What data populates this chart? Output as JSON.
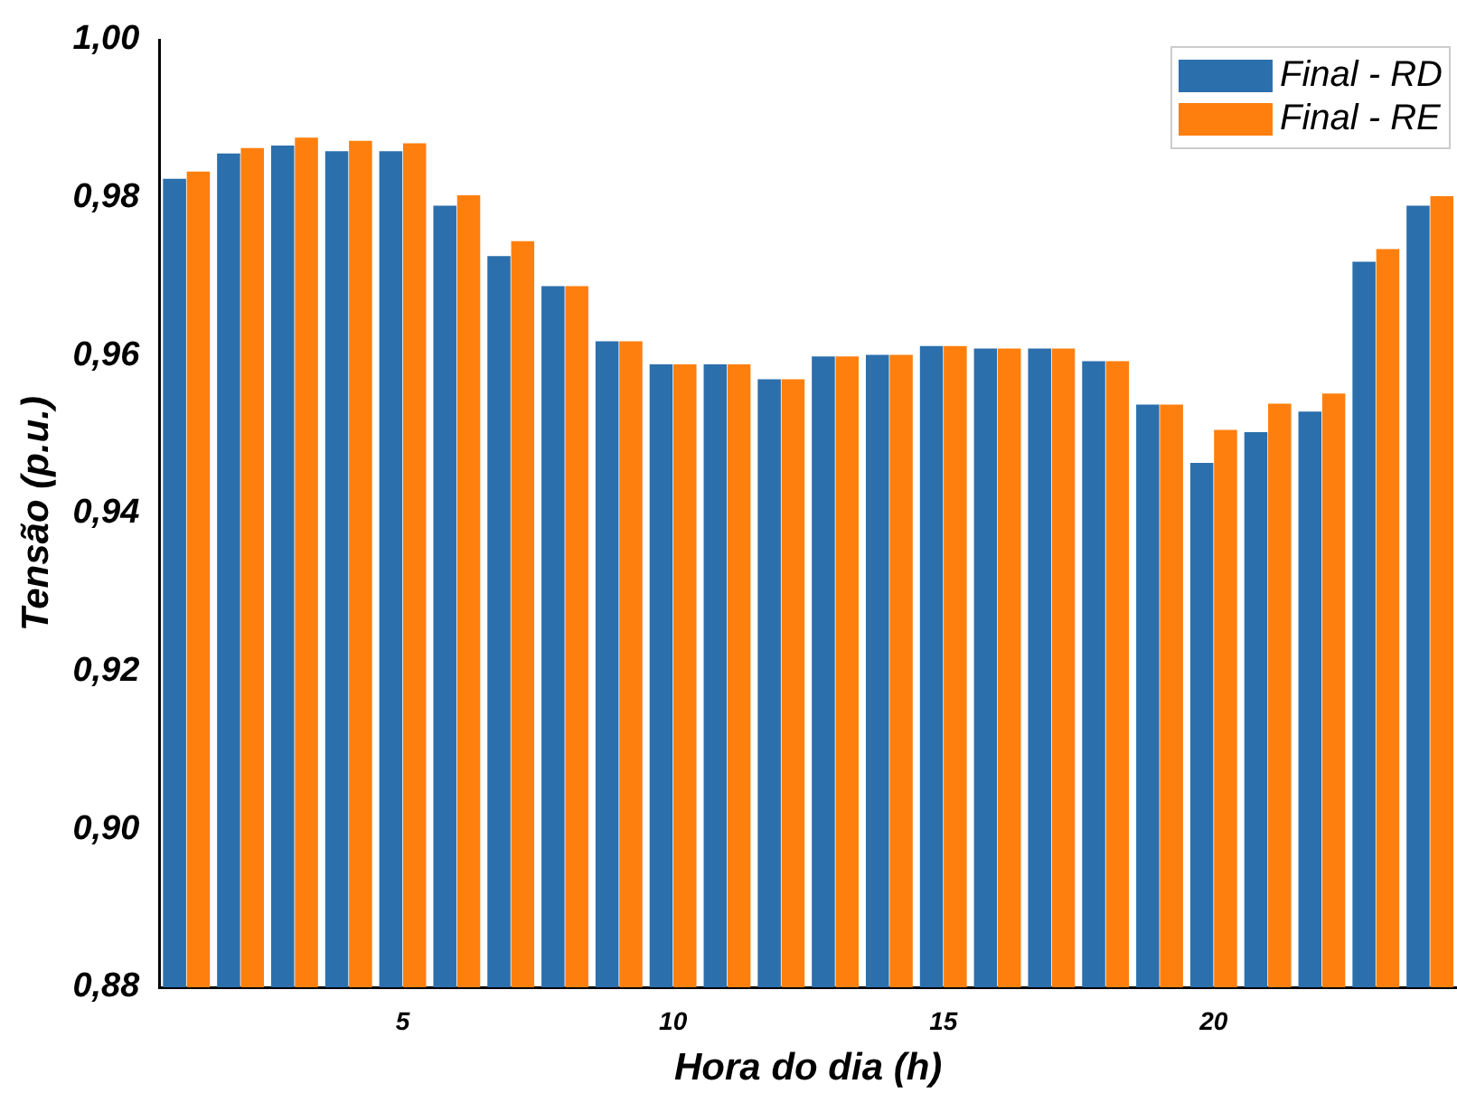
{
  "chart_data": {
    "type": "bar",
    "xlabel": "Hora do dia (h)",
    "ylabel": "Tensão (p.u.)",
    "categories": [
      null,
      null,
      null,
      null,
      "5",
      null,
      null,
      null,
      null,
      "10",
      null,
      null,
      null,
      null,
      "15",
      null,
      null,
      null,
      null,
      "20",
      null,
      null,
      null,
      null
    ],
    "series": [
      {
        "name": "Final - RD",
        "color": "#2b6fad",
        "values": [
          0.9824,
          0.9856,
          0.9866,
          0.9859,
          0.9859,
          0.979,
          0.9726,
          0.9688,
          0.9618,
          0.9589,
          0.9589,
          0.957,
          0.9599,
          0.9601,
          0.9612,
          0.9609,
          0.9609,
          0.9593,
          0.9538,
          0.9464,
          0.9503,
          0.9529,
          0.9719,
          0.979
        ]
      },
      {
        "name": "Final - RE",
        "color": "#ff7f0e",
        "values": [
          0.9833,
          0.9863,
          0.9876,
          0.9872,
          0.9869,
          0.9803,
          0.9745,
          0.9688,
          0.9618,
          0.9589,
          0.9589,
          0.957,
          0.9599,
          0.9601,
          0.9612,
          0.9609,
          0.9609,
          0.9593,
          0.9538,
          0.9506,
          0.9539,
          0.9552,
          0.9735,
          0.9802
        ]
      }
    ],
    "ylim": [
      0.88,
      1.0
    ],
    "yticks": [
      {
        "value": 0.88,
        "label": "0,88"
      },
      {
        "value": 0.9,
        "label": "0,90"
      },
      {
        "value": 0.92,
        "label": "0,92"
      },
      {
        "value": 0.94,
        "label": "0,94"
      },
      {
        "value": 0.96,
        "label": "0,96"
      },
      {
        "value": 0.98,
        "label": "0,98"
      },
      {
        "value": 1.0,
        "label": "1,00"
      }
    ],
    "grid": false,
    "legend": "top right"
  }
}
